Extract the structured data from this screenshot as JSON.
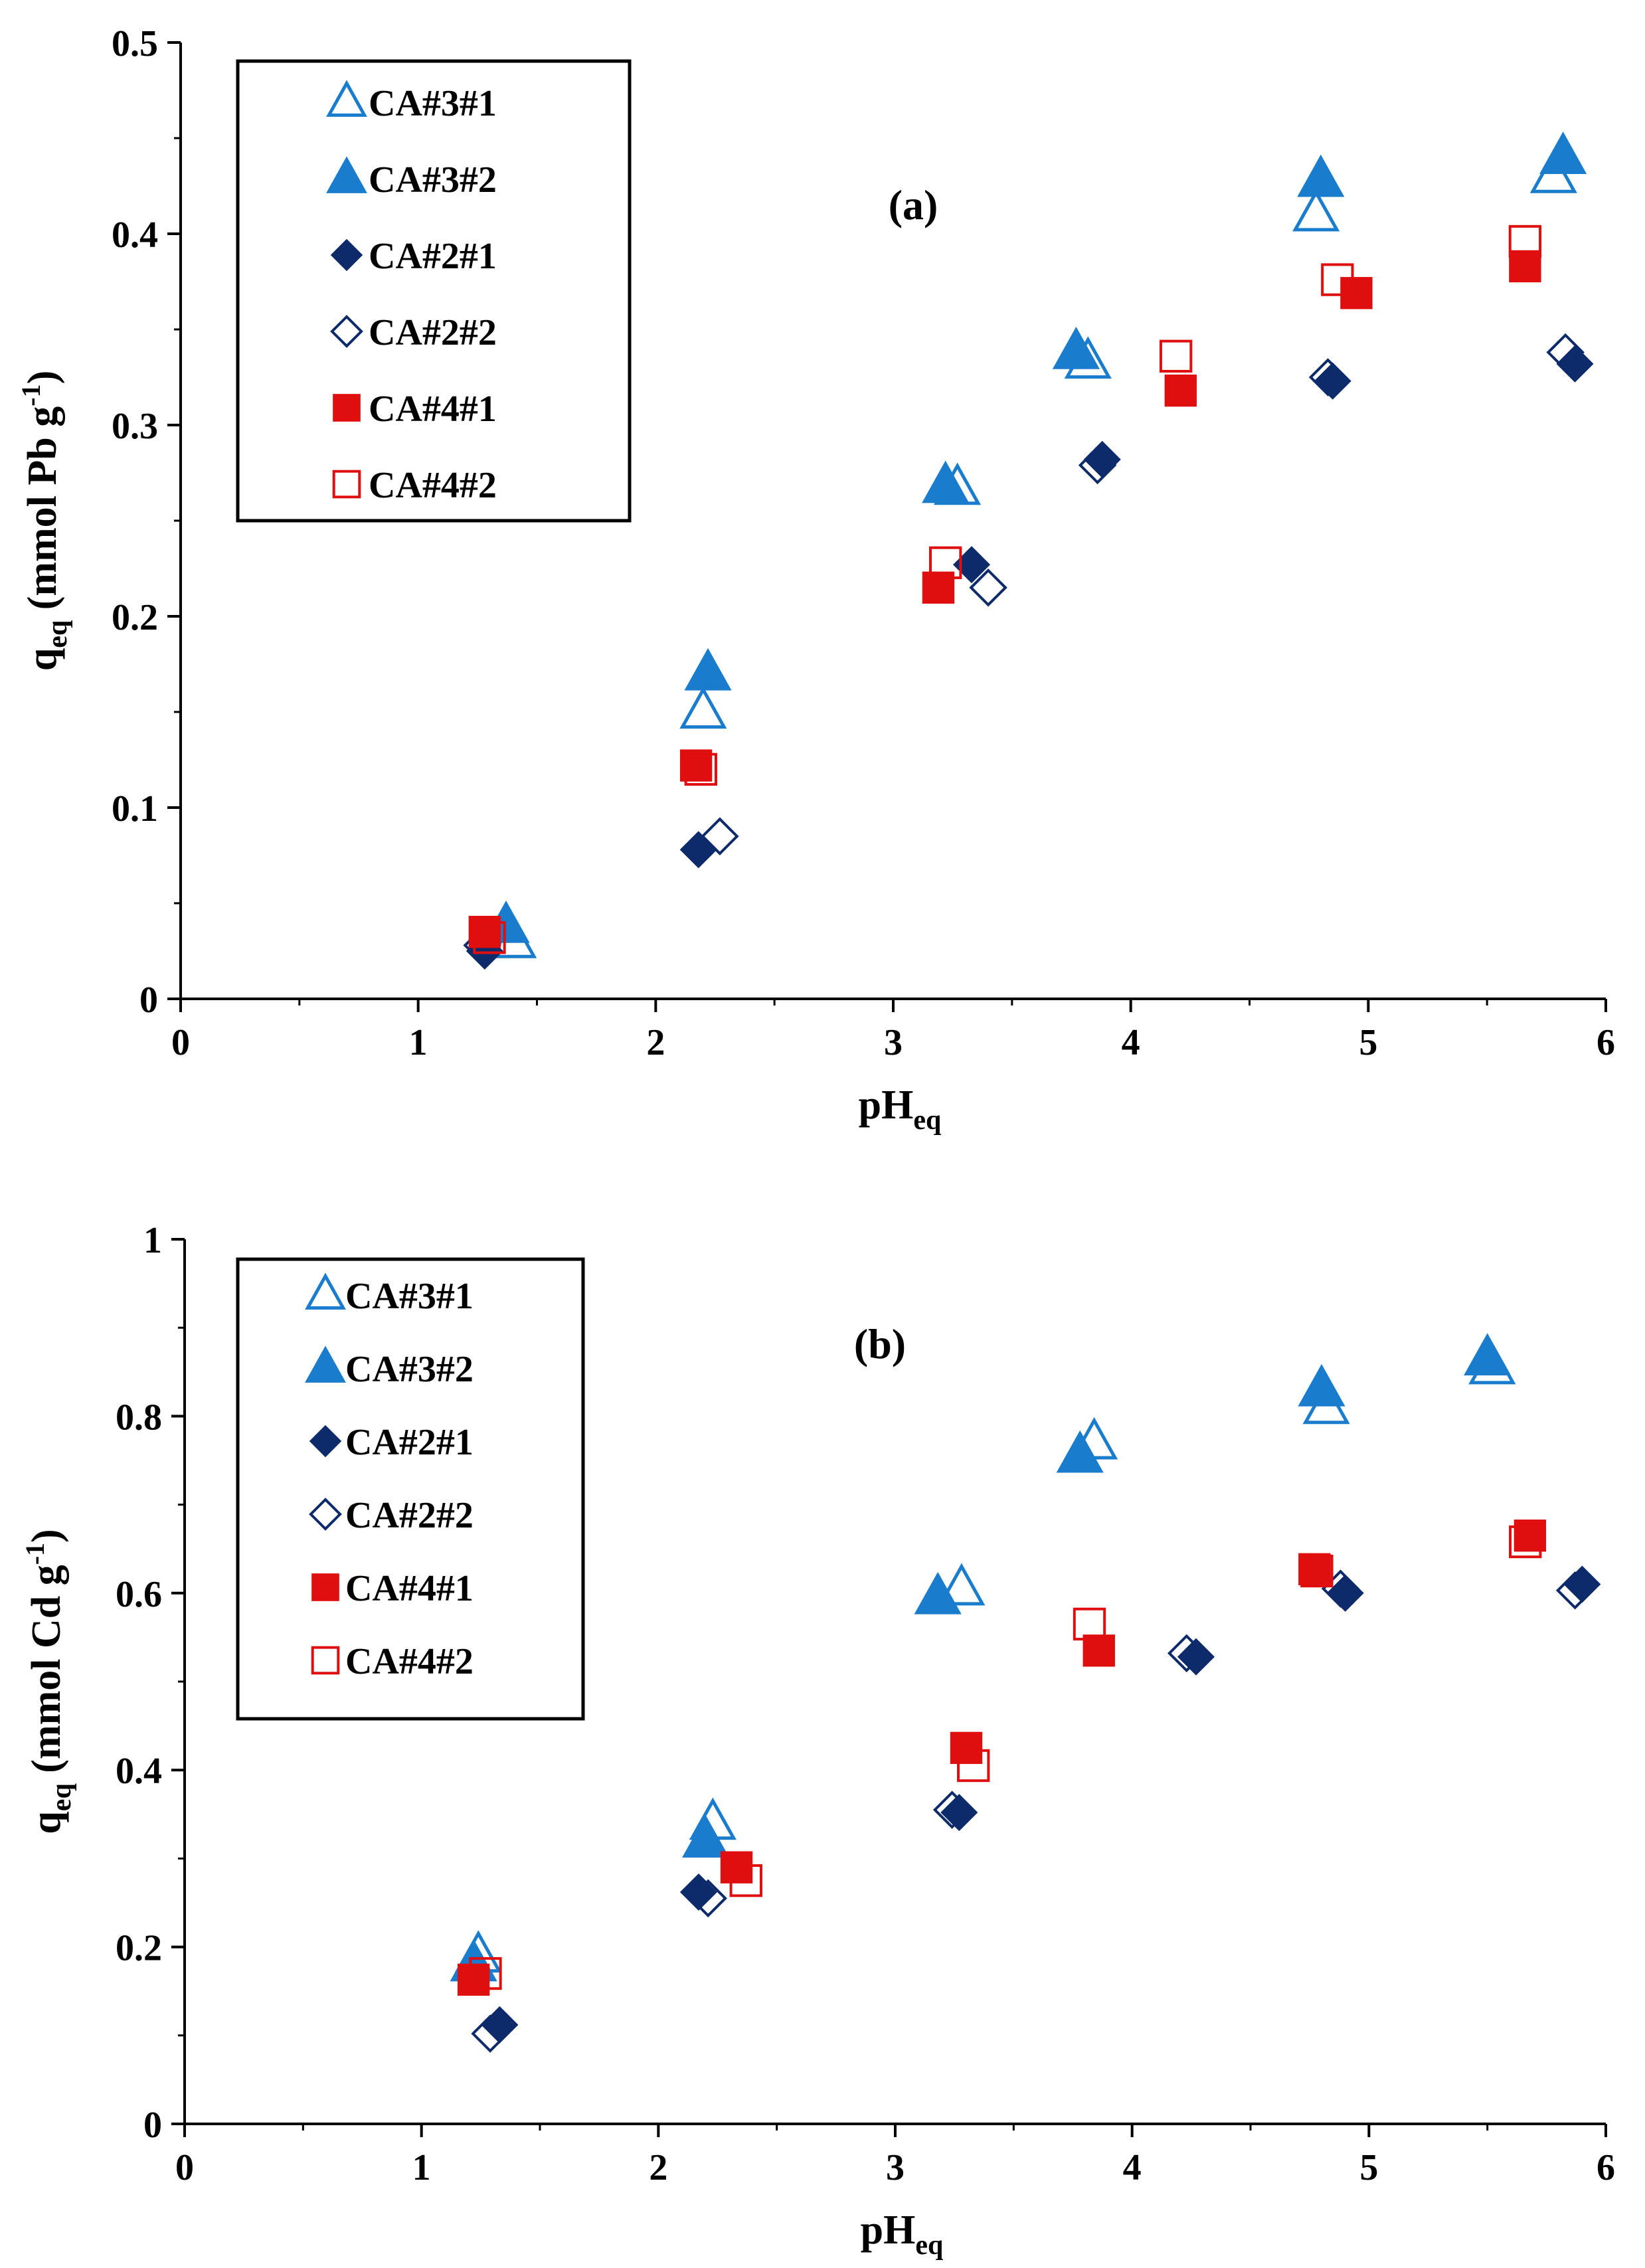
{
  "colors": {
    "blue": "#1a7ccc",
    "navy": "#0d2a6b",
    "red": "#e00f0f",
    "axis": "#000000"
  },
  "chart_data": [
    {
      "type": "scatter",
      "panel_label": "(a)",
      "xlabel": "pH",
      "xlabel_sub": "eq",
      "ylabel": "q",
      "ylabel_sub": "eq",
      "ylabel_unit": "(mmol Pb g",
      "ylabel_sup": "-1",
      "ylabel_close": ")",
      "xlim": [
        0,
        6
      ],
      "ylim": [
        0,
        0.5
      ],
      "xticks": [
        "0",
        "1",
        "2",
        "3",
        "4",
        "5",
        "6"
      ],
      "yticks": [
        "0",
        "0.1",
        "0.2",
        "0.3",
        "0.4",
        "0.5"
      ],
      "xtick_values": [
        0,
        1,
        2,
        3,
        4,
        5,
        6
      ],
      "ytick_values": [
        0,
        0.1,
        0.2,
        0.3,
        0.4,
        0.5
      ],
      "legend_position": "top-left",
      "series": [
        {
          "name": "CA#3#1",
          "marker": "triangle-open",
          "color": "blue",
          "points": [
            [
              1.4,
              0.03
            ],
            [
              2.2,
              0.15
            ],
            [
              3.27,
              0.267
            ],
            [
              3.82,
              0.333
            ],
            [
              4.78,
              0.41
            ],
            [
              5.78,
              0.43
            ]
          ]
        },
        {
          "name": "CA#3#2",
          "marker": "triangle-filled",
          "color": "blue",
          "points": [
            [
              1.37,
              0.038
            ],
            [
              2.22,
              0.17
            ],
            [
              3.22,
              0.268
            ],
            [
              3.77,
              0.338
            ],
            [
              4.8,
              0.428
            ],
            [
              5.82,
              0.44
            ]
          ]
        },
        {
          "name": "CA#2#1",
          "marker": "diamond-filled",
          "color": "navy",
          "points": [
            [
              1.28,
              0.025
            ],
            [
              2.18,
              0.078
            ],
            [
              3.33,
              0.227
            ],
            [
              3.88,
              0.282
            ],
            [
              4.85,
              0.323
            ],
            [
              5.87,
              0.332
            ]
          ]
        },
        {
          "name": "CA#2#2",
          "marker": "diamond-open",
          "color": "navy",
          "points": [
            [
              1.27,
              0.028
            ],
            [
              2.27,
              0.085
            ],
            [
              3.4,
              0.215
            ],
            [
              3.86,
              0.279
            ],
            [
              4.83,
              0.325
            ],
            [
              5.83,
              0.338
            ]
          ]
        },
        {
          "name": "CA#4#1",
          "marker": "square-filled",
          "color": "red",
          "points": [
            [
              1.28,
              0.035
            ],
            [
              2.17,
              0.122
            ],
            [
              3.19,
              0.215
            ],
            [
              4.21,
              0.318
            ],
            [
              4.95,
              0.369
            ],
            [
              5.66,
              0.383
            ]
          ]
        },
        {
          "name": "CA#4#2",
          "marker": "square-open",
          "color": "red",
          "points": [
            [
              1.3,
              0.032
            ],
            [
              2.19,
              0.12
            ],
            [
              3.22,
              0.228
            ],
            [
              4.19,
              0.336
            ],
            [
              4.87,
              0.376
            ],
            [
              5.66,
              0.396
            ]
          ]
        }
      ]
    },
    {
      "type": "scatter",
      "panel_label": "(b)",
      "xlabel": "pH",
      "xlabel_sub": "eq",
      "ylabel": "q",
      "ylabel_sub": "eq",
      "ylabel_unit": "(mmol Cd g",
      "ylabel_sup": "-1",
      "ylabel_close": ")",
      "xlim": [
        0,
        6
      ],
      "ylim": [
        0,
        1
      ],
      "xticks": [
        "0",
        "1",
        "2",
        "3",
        "4",
        "5",
        "6"
      ],
      "yticks": [
        "0",
        "0.2",
        "0.4",
        "0.6",
        "0.8",
        "1"
      ],
      "xtick_values": [
        0,
        1,
        2,
        3,
        4,
        5,
        6
      ],
      "ytick_values": [
        0,
        0.2,
        0.4,
        0.6,
        0.8,
        1.0
      ],
      "legend_position": "top-left",
      "series": [
        {
          "name": "CA#3#1",
          "marker": "triangle-open",
          "color": "blue",
          "points": [
            [
              1.24,
              0.19
            ],
            [
              2.23,
              0.34
            ],
            [
              3.28,
              0.605
            ],
            [
              3.84,
              0.77
            ],
            [
              4.82,
              0.81
            ],
            [
              5.52,
              0.855
            ]
          ]
        },
        {
          "name": "CA#3#2",
          "marker": "triangle-filled",
          "color": "blue",
          "points": [
            [
              1.22,
              0.18
            ],
            [
              2.2,
              0.32
            ],
            [
              3.18,
              0.595
            ],
            [
              3.78,
              0.755
            ],
            [
              4.8,
              0.83
            ],
            [
              5.5,
              0.865
            ]
          ]
        },
        {
          "name": "CA#2#1",
          "marker": "diamond-filled",
          "color": "navy",
          "points": [
            [
              1.33,
              0.112
            ],
            [
              2.17,
              0.262
            ],
            [
              3.27,
              0.352
            ],
            [
              4.27,
              0.528
            ],
            [
              4.9,
              0.6
            ],
            [
              5.9,
              0.61
            ]
          ]
        },
        {
          "name": "CA#2#2",
          "marker": "diamond-open",
          "color": "navy",
          "points": [
            [
              1.29,
              0.102
            ],
            [
              2.21,
              0.255
            ],
            [
              3.24,
              0.355
            ],
            [
              4.23,
              0.532
            ],
            [
              4.88,
              0.605
            ],
            [
              5.87,
              0.603
            ]
          ]
        },
        {
          "name": "CA#4#1",
          "marker": "square-filled",
          "color": "red",
          "points": [
            [
              1.22,
              0.163
            ],
            [
              2.33,
              0.29
            ],
            [
              3.3,
              0.425
            ],
            [
              3.86,
              0.535
            ],
            [
              4.77,
              0.627
            ],
            [
              5.68,
              0.665
            ]
          ]
        },
        {
          "name": "CA#4#2",
          "marker": "square-open",
          "color": "red",
          "points": [
            [
              1.27,
              0.17
            ],
            [
              2.37,
              0.275
            ],
            [
              3.33,
              0.405
            ],
            [
              3.82,
              0.565
            ],
            [
              4.78,
              0.625
            ],
            [
              5.66,
              0.658
            ]
          ]
        }
      ]
    }
  ]
}
